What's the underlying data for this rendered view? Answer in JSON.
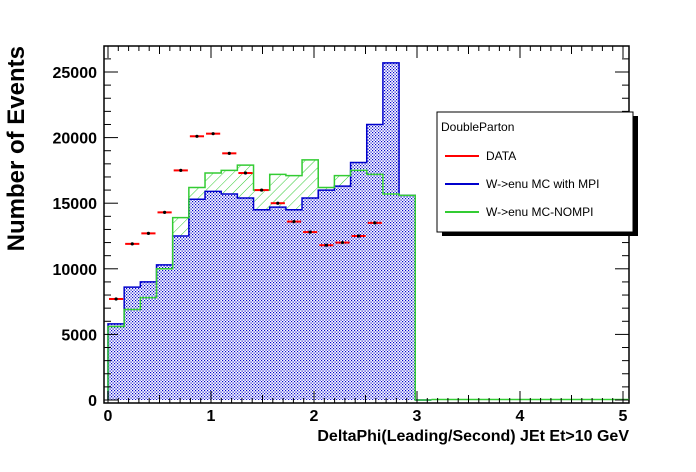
{
  "chart_data": {
    "type": "histogram",
    "xlabel": "DeltaPhi(Leading/Second) JEt Et>10 GeV",
    "ylabel": "Number of Events",
    "xlim": [
      0,
      5
    ],
    "ylim": [
      0,
      27000
    ],
    "x_ticks": [
      0,
      1,
      2,
      3,
      4,
      5
    ],
    "x_tick_labels": [
      "0",
      "1",
      "2",
      "3",
      "4",
      "5"
    ],
    "y_ticks": [
      0,
      5000,
      10000,
      15000,
      20000,
      25000
    ],
    "y_tick_labels": [
      "0",
      "5000",
      "10000",
      "15000",
      "20000",
      "25000"
    ],
    "bin_edges": [
      0,
      0.157,
      0.314,
      0.471,
      0.628,
      0.785,
      0.942,
      1.099,
      1.256,
      1.413,
      1.57,
      1.727,
      1.884,
      2.041,
      2.198,
      2.355,
      2.512,
      2.669,
      2.826,
      2.983,
      3.14
    ],
    "series": [
      {
        "name": "W->enu MC with MPI",
        "style": "hist-filled",
        "color": "#0000cc",
        "values": [
          5800,
          8600,
          9000,
          10300,
          12500,
          15300,
          15900,
          15700,
          15400,
          14500,
          14700,
          14500,
          15400,
          16000,
          16300,
          18100,
          21000,
          25700,
          15600,
          0
        ]
      },
      {
        "name": "W->enu MC-NOMPI",
        "style": "hist-line",
        "color": "#33cc33",
        "values": [
          5600,
          6900,
          7800,
          10000,
          13900,
          16200,
          17300,
          17500,
          17900,
          16000,
          17200,
          17100,
          18300,
          16200,
          17100,
          17500,
          17200,
          15700,
          15600,
          0
        ]
      },
      {
        "name": "DATA",
        "style": "points",
        "color": "#ff0000",
        "values": [
          7700,
          11900,
          12700,
          14300,
          17500,
          20100,
          20300,
          18800,
          17300,
          16000,
          15000,
          13600,
          12800,
          11800,
          12000,
          12500,
          13500,
          null,
          null,
          null
        ]
      }
    ],
    "legend": {
      "title": "DoubleParton",
      "entries": [
        "DATA",
        "W->enu MC with MPI",
        "W->enu MC-NOMPI"
      ],
      "position": "right"
    }
  }
}
